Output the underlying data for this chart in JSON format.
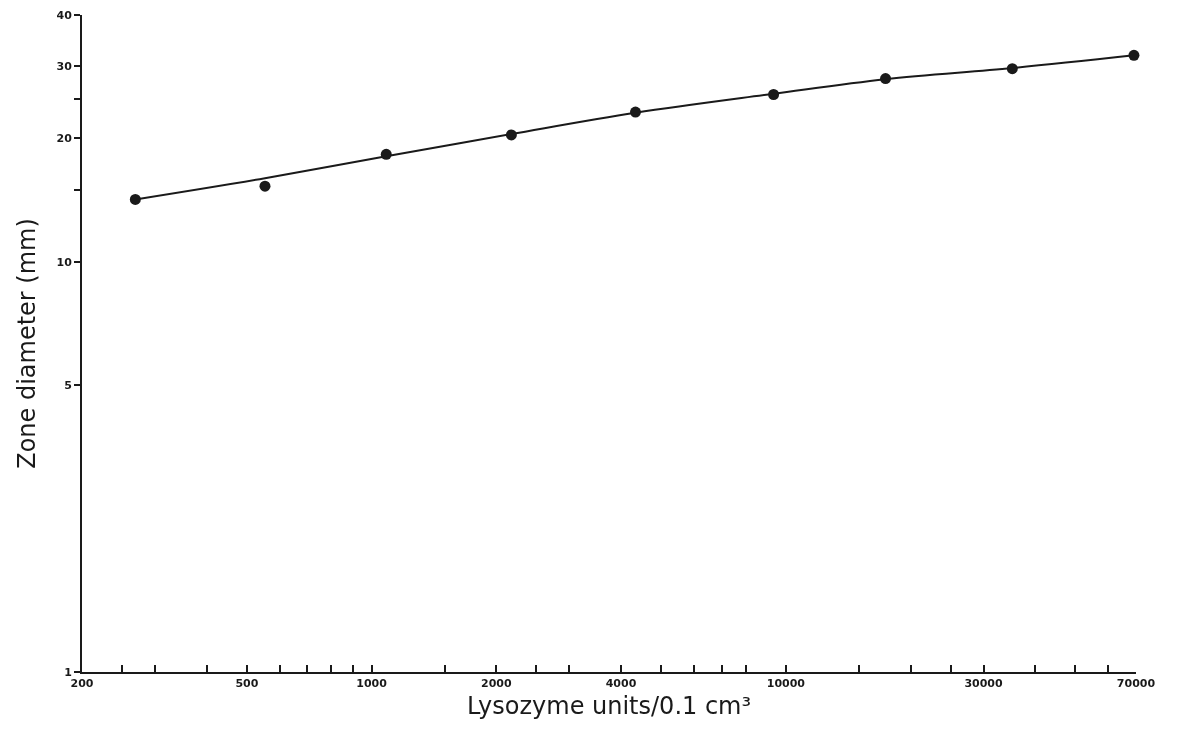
{
  "chart_data": {
    "type": "scatter",
    "xlabel": "Lysozyme units/0.1 cm³",
    "ylabel": "Zone diameter (mm)",
    "log": "xy",
    "grid": false,
    "xlim": [
      200,
      70000
    ],
    "ylim": [
      1,
      40
    ],
    "xticks": [
      200,
      {
        "value": 250,
        "label": null
      },
      {
        "value": 300,
        "label": null
      },
      {
        "value": 400,
        "label": null
      },
      500,
      {
        "value": 600,
        "label": null
      },
      {
        "value": 700,
        "label": null
      },
      {
        "value": 800,
        "label": null
      },
      {
        "value": 900,
        "label": null
      },
      1000,
      {
        "value": 1500,
        "label": null
      },
      2000,
      {
        "value": 2500,
        "label": null
      },
      {
        "value": 3000,
        "label": null
      },
      4000,
      {
        "value": 5000,
        "label": null
      },
      {
        "value": 6000,
        "label": null
      },
      {
        "value": 7000,
        "label": null
      },
      {
        "value": 8000,
        "label": null
      },
      10000,
      {
        "value": 15000,
        "label": null
      },
      {
        "value": 20000,
        "label": null
      },
      {
        "value": 25000,
        "label": null
      },
      30000,
      {
        "value": 40000,
        "label": null
      },
      {
        "value": 50000,
        "label": null
      },
      {
        "value": 60000,
        "label": null
      },
      70000
    ],
    "yticks": [
      1,
      5,
      10,
      {
        "value": 15,
        "label": null
      },
      20,
      {
        "value": 25,
        "label": null
      },
      30,
      40
    ],
    "series": [
      {
        "marker": "circle",
        "color": "#1a1a1a",
        "x": [
          269,
          553,
          1085,
          2175,
          4335,
          9340,
          17400,
          35200,
          69200
        ],
        "values": [
          14.2,
          15.3,
          18.3,
          20.4,
          23.2,
          25.6,
          28.0,
          29.6,
          31.9
        ]
      },
      {
        "type": "line",
        "marker": "none",
        "color": "#1a1a1a",
        "line_style": "solid",
        "x": [
          269,
          553,
          1085,
          2175,
          4335,
          9340,
          17400,
          35200,
          69200
        ],
        "values": [
          14.2,
          16.0,
          18.1,
          20.5,
          23.1,
          25.7,
          27.9,
          29.7,
          31.9
        ]
      }
    ]
  }
}
